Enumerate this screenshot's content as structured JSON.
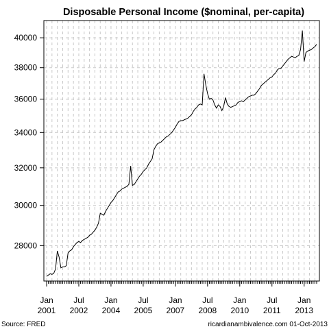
{
  "chart_data": {
    "type": "line",
    "title": "Disposable Personal Income ($nominal, per-capita)",
    "xlabel": "",
    "ylabel": "",
    "ylim": [
      26350,
      41200
    ],
    "y_scale": "log",
    "y_ticks": [
      28000,
      30000,
      32000,
      34000,
      36000,
      38000,
      40000
    ],
    "y_tick_labels": [
      "28000",
      "30000",
      "32000",
      "34000",
      "36000",
      "38000",
      "40000"
    ],
    "x_range": [
      "2001-01",
      "2013-08"
    ],
    "x_ticks": [
      {
        "date": "2001-01",
        "label": "Jan\n2001"
      },
      {
        "date": "2002-07",
        "label": "Jul\n2002"
      },
      {
        "date": "2004-01",
        "label": "Jan\n2004"
      },
      {
        "date": "2005-07",
        "label": "Jul\n2005"
      },
      {
        "date": "2007-01",
        "label": "Jan\n2007"
      },
      {
        "date": "2008-07",
        "label": "Jul\n2008"
      },
      {
        "date": "2010-01",
        "label": "Jan\n2010"
      },
      {
        "date": "2011-07",
        "label": "Jul\n2011"
      },
      {
        "date": "2013-01",
        "label": "Jan\n2013"
      }
    ],
    "grid": true,
    "line_color": "#000000",
    "series": [
      {
        "name": "",
        "points": [
          [
            "2001-01",
            26560
          ],
          [
            "2001-02",
            26620
          ],
          [
            "2001-03",
            26680
          ],
          [
            "2001-04",
            26650
          ],
          [
            "2001-05",
            26700
          ],
          [
            "2001-06",
            26900
          ],
          [
            "2001-07",
            27750
          ],
          [
            "2001-08",
            27450
          ],
          [
            "2001-09",
            26950
          ],
          [
            "2001-10",
            27000
          ],
          [
            "2001-11",
            27000
          ],
          [
            "2001-12",
            27050
          ],
          [
            "2002-01",
            27650
          ],
          [
            "2002-02",
            27750
          ],
          [
            "2002-03",
            27800
          ],
          [
            "2002-04",
            27950
          ],
          [
            "2002-05",
            28050
          ],
          [
            "2002-06",
            28150
          ],
          [
            "2002-07",
            28200
          ],
          [
            "2002-08",
            28150
          ],
          [
            "2002-09",
            28250
          ],
          [
            "2002-10",
            28300
          ],
          [
            "2002-11",
            28350
          ],
          [
            "2002-12",
            28400
          ],
          [
            "2003-01",
            28500
          ],
          [
            "2003-02",
            28550
          ],
          [
            "2003-03",
            28650
          ],
          [
            "2003-04",
            28750
          ],
          [
            "2003-05",
            28900
          ],
          [
            "2003-06",
            29100
          ],
          [
            "2003-07",
            29600
          ],
          [
            "2003-08",
            29550
          ],
          [
            "2003-09",
            29500
          ],
          [
            "2003-10",
            29700
          ],
          [
            "2003-11",
            29850
          ],
          [
            "2003-12",
            30000
          ],
          [
            "2004-01",
            30150
          ],
          [
            "2004-02",
            30250
          ],
          [
            "2004-03",
            30400
          ],
          [
            "2004-04",
            30550
          ],
          [
            "2004-05",
            30700
          ],
          [
            "2004-06",
            30750
          ],
          [
            "2004-07",
            30850
          ],
          [
            "2004-08",
            30900
          ],
          [
            "2004-09",
            30950
          ],
          [
            "2004-10",
            31000
          ],
          [
            "2004-11",
            31100
          ],
          [
            "2004-12",
            32100
          ],
          [
            "2005-01",
            31050
          ],
          [
            "2005-02",
            31100
          ],
          [
            "2005-03",
            31250
          ],
          [
            "2005-04",
            31400
          ],
          [
            "2005-05",
            31550
          ],
          [
            "2005-06",
            31650
          ],
          [
            "2005-07",
            31800
          ],
          [
            "2005-08",
            31900
          ],
          [
            "2005-09",
            32000
          ],
          [
            "2005-10",
            32200
          ],
          [
            "2005-11",
            32350
          ],
          [
            "2005-12",
            32500
          ],
          [
            "2006-01",
            33000
          ],
          [
            "2006-02",
            33200
          ],
          [
            "2006-03",
            33350
          ],
          [
            "2006-04",
            33400
          ],
          [
            "2006-05",
            33450
          ],
          [
            "2006-06",
            33550
          ],
          [
            "2006-07",
            33650
          ],
          [
            "2006-08",
            33750
          ],
          [
            "2006-09",
            33800
          ],
          [
            "2006-10",
            33900
          ],
          [
            "2006-11",
            34000
          ],
          [
            "2006-12",
            34150
          ],
          [
            "2007-01",
            34300
          ],
          [
            "2007-02",
            34500
          ],
          [
            "2007-03",
            34650
          ],
          [
            "2007-04",
            34700
          ],
          [
            "2007-05",
            34700
          ],
          [
            "2007-06",
            34750
          ],
          [
            "2007-07",
            34800
          ],
          [
            "2007-08",
            34850
          ],
          [
            "2007-09",
            34950
          ],
          [
            "2007-10",
            35050
          ],
          [
            "2007-11",
            35250
          ],
          [
            "2007-12",
            35400
          ],
          [
            "2008-01",
            35500
          ],
          [
            "2008-02",
            35650
          ],
          [
            "2008-03",
            35700
          ],
          [
            "2008-04",
            35650
          ],
          [
            "2008-05",
            37600
          ],
          [
            "2008-06",
            36900
          ],
          [
            "2008-07",
            36350
          ],
          [
            "2008-08",
            36000
          ],
          [
            "2008-09",
            36050
          ],
          [
            "2008-10",
            35950
          ],
          [
            "2008-11",
            35650
          ],
          [
            "2008-12",
            35450
          ],
          [
            "2009-01",
            35650
          ],
          [
            "2009-02",
            35550
          ],
          [
            "2009-03",
            35300
          ],
          [
            "2009-04",
            35550
          ],
          [
            "2009-05",
            36100
          ],
          [
            "2009-06",
            35700
          ],
          [
            "2009-07",
            35550
          ],
          [
            "2009-08",
            35500
          ],
          [
            "2009-09",
            35550
          ],
          [
            "2009-10",
            35600
          ],
          [
            "2009-11",
            35650
          ],
          [
            "2009-12",
            35800
          ],
          [
            "2010-01",
            35850
          ],
          [
            "2010-02",
            35900
          ],
          [
            "2010-03",
            35850
          ],
          [
            "2010-04",
            35950
          ],
          [
            "2010-05",
            36050
          ],
          [
            "2010-06",
            36150
          ],
          [
            "2010-07",
            36200
          ],
          [
            "2010-08",
            36250
          ],
          [
            "2010-09",
            36250
          ],
          [
            "2010-10",
            36350
          ],
          [
            "2010-11",
            36500
          ],
          [
            "2010-12",
            36650
          ],
          [
            "2011-01",
            36850
          ],
          [
            "2011-02",
            36950
          ],
          [
            "2011-03",
            37050
          ],
          [
            "2011-04",
            37150
          ],
          [
            "2011-05",
            37250
          ],
          [
            "2011-06",
            37350
          ],
          [
            "2011-07",
            37400
          ],
          [
            "2011-08",
            37550
          ],
          [
            "2011-09",
            37650
          ],
          [
            "2011-10",
            37850
          ],
          [
            "2011-11",
            37950
          ],
          [
            "2011-12",
            37950
          ],
          [
            "2012-01",
            38100
          ],
          [
            "2012-02",
            38250
          ],
          [
            "2012-03",
            38400
          ],
          [
            "2012-04",
            38550
          ],
          [
            "2012-05",
            38650
          ],
          [
            "2012-06",
            38750
          ],
          [
            "2012-07",
            38700
          ],
          [
            "2012-08",
            38650
          ],
          [
            "2012-09",
            38750
          ],
          [
            "2012-10",
            38800
          ],
          [
            "2012-11",
            39200
          ],
          [
            "2012-12",
            40500
          ],
          [
            "2013-01",
            38400
          ],
          [
            "2013-02",
            39000
          ],
          [
            "2013-03",
            39100
          ],
          [
            "2013-04",
            39150
          ],
          [
            "2013-05",
            39200
          ],
          [
            "2013-06",
            39300
          ],
          [
            "2013-07",
            39400
          ],
          [
            "2013-08",
            39550
          ]
        ]
      }
    ]
  },
  "footer": {
    "source": "Source: FRED",
    "credit": "ricardianambivalence.com  01-Oct-2013"
  }
}
